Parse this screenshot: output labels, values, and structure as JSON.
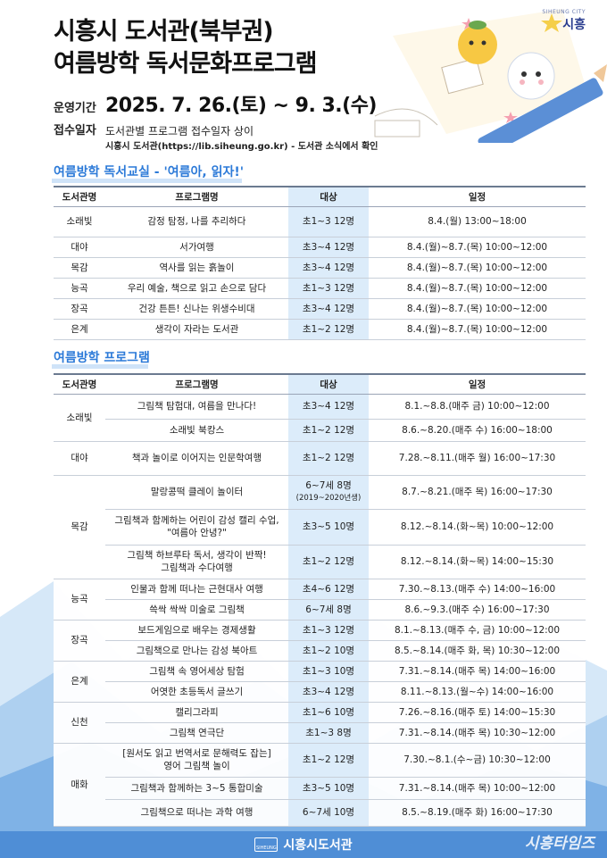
{
  "logo": {
    "small": "SIHEUNG CITY",
    "main": "시흥"
  },
  "title": {
    "line1": "시흥시 도서관(북부권)",
    "line2": "여름방학 독서문화프로그램"
  },
  "period": {
    "label": "운영기간",
    "value": "2025. 7. 26.(토) ~ 9. 3.(수)"
  },
  "reception": {
    "label": "접수일자",
    "line1": "도서관별 프로그램 접수일자 상이",
    "line2": "시흥시 도서관(https://lib.siheung.go.kr) - 도서관 소식에서 확인"
  },
  "section1": {
    "title": "여름방학 독서교실 - '여름아, 읽자!'",
    "headers": [
      "도서관명",
      "프로그램명",
      "대상",
      "일정"
    ],
    "rows": [
      [
        "소래빛",
        "감정 탐정, 나를 추리하다",
        "초1~3 12명",
        "8.4.(월) 13:00~18:00"
      ],
      [
        "대야",
        "서가여행",
        "초3~4 12명",
        "8.4.(월)~8.7.(목) 10:00~12:00"
      ],
      [
        "목감",
        "역사를 읽는 흙놀이",
        "초3~4 12명",
        "8.4.(월)~8.7.(목) 10:00~12:00"
      ],
      [
        "능곡",
        "우리 예술, 책으로 읽고 손으로 담다",
        "초1~3 12명",
        "8.4.(월)~8.7.(목) 10:00~12:00"
      ],
      [
        "장곡",
        "건강 튼튼! 신나는 위생수비대",
        "초3~4 12명",
        "8.4.(월)~8.7.(목) 10:00~12:00"
      ],
      [
        "은계",
        "생각이 자라는 도서관",
        "초1~2 12명",
        "8.4.(월)~8.7.(목) 10:00~12:00"
      ]
    ]
  },
  "section2": {
    "title": "여름방학 프로그램",
    "headers": [
      "도서관명",
      "프로그램명",
      "대상",
      "일정"
    ],
    "libs": [
      "소래빛",
      "대야",
      "목감",
      "능곡",
      "장곡",
      "은계",
      "신천",
      "매화"
    ],
    "rows": [
      [
        "그림책 탐험대, 여름을 만나다!",
        "초3~4 12명",
        "8.1.~8.8.(매주 금) 10:00~12:00"
      ],
      [
        "소래빛 북캉스",
        "초1~2 12명",
        "8.6.~8.20.(매주 수) 16:00~18:00"
      ],
      [
        "책과 놀이로 이어지는 인문학여행",
        "초1~2 12명",
        "7.28.~8.11.(매주 월) 16:00~17:30"
      ],
      [
        "말랑콩떡 클레이 놀이터",
        "6~7세 8명",
        "8.7.~8.21.(매주 목) 16:00~17:30"
      ],
      [
        "그림책과 함께하는 어린이 감성 캘리 수업,",
        "초3~5 10명",
        "8.12.~8.14.(화~목) 10:00~12:00"
      ],
      [
        "그림책 하브루타 독서, 생각이 반짝!",
        "초1~2 12명",
        "8.12.~8.14.(화~목) 14:00~15:30"
      ],
      [
        "인물과 함께 떠나는 근현대사 여행",
        "초4~6 12명",
        "7.30.~8.13.(매주 수) 14:00~16:00"
      ],
      [
        "쓱싹 싹싹 미술로 그림책",
        "6~7세 8명",
        "8.6.~9.3.(매주 수) 16:00~17:30"
      ],
      [
        "보드게임으로 배우는 경제생활",
        "초1~3 12명",
        "8.1.~8.13.(매주 수, 금) 10:00~12:00"
      ],
      [
        "그림책으로 만나는 감성 북아트",
        "초1~2 10명",
        "8.5.~8.14.(매주 화, 목) 10:30~12:00"
      ],
      [
        "그림책 속 영어세상 탐험",
        "초1~3 10명",
        "7.31.~8.14.(매주 목) 14:00~16:00"
      ],
      [
        "어엿한 초등독서 글쓰기",
        "초3~4 12명",
        "8.11.~8.13.(월~수) 14:00~16:00"
      ],
      [
        "캘리그라피",
        "초1~6 10명",
        "7.26.~8.16.(매주 토) 14:00~15:30"
      ],
      [
        "그림책 연극단",
        "초1~3 8명",
        "7.31.~8.14.(매주 목) 10:30~12:00"
      ],
      [
        "[원서도 읽고 번역서로 문해력도 잡는]",
        "초1~2 12명",
        "7.30.~8.1.(수~금) 10:30~12:00"
      ],
      [
        "그림책과 함께하는 3~5 통합미술",
        "초3~5 10명",
        "7.31.~8.14.(매주 목) 10:00~12:00"
      ],
      [
        "그림책으로 떠나는 과학 여행",
        "6~7세 10명",
        "8.5.~8.19.(매주 화) 16:00~17:30"
      ]
    ],
    "extra": {
      "r4_sub": "(2019~2020년생)",
      "r5_line2": "\"여름아 안녕?\"",
      "r6_line2": "그림책과 수다여행",
      "r15_line2": "영어 그림책 놀이"
    }
  },
  "footer": {
    "icon_text": "SIHEUNG",
    "text": "시흥시도서관",
    "watermark": "시흥타임즈"
  },
  "colors": {
    "accent": "#2c7ad8",
    "target_bg": "#dcecfa",
    "mountain": "#7fb2e6"
  }
}
